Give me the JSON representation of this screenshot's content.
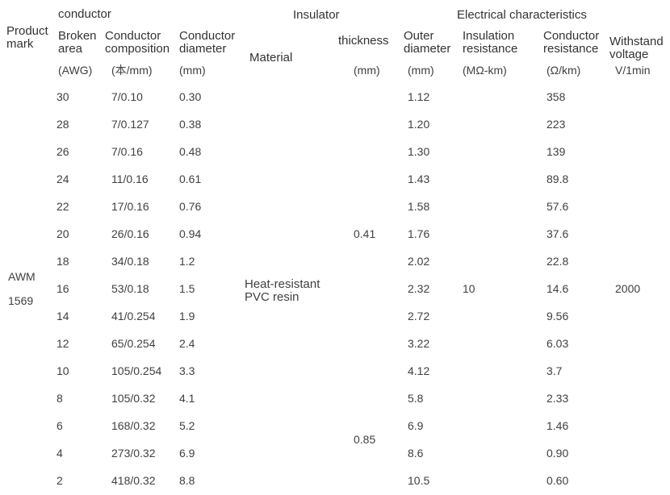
{
  "header": {
    "product_mark": "Product mark",
    "conductor": "conductor",
    "insulator": "Insulator",
    "electrical": "Electrical characteristics",
    "broken_area": "Broken area",
    "conductor_composition": "Conductor composition",
    "conductor_diameter": "Conductor diameter",
    "material": "Material",
    "thickness": "thickness",
    "outer_diameter": "Outer diameter",
    "insulation_resistance": "Insulation resistance",
    "conductor_resistance": "Conductor resistance",
    "withstand_voltage": "Withstand voltage"
  },
  "units": {
    "awg": "(AWG)",
    "composition": "(本/mm)",
    "diameter": "(mm)",
    "thickness": "(mm)",
    "outer": "(mm)",
    "insulation": "(MΩ-km)",
    "resistance": "(Ω/km)",
    "voltage": "V/1min"
  },
  "product": {
    "mark_line1": "AWM",
    "mark_line2": "1569"
  },
  "material": "Heat-resistant PVC resin",
  "thickness_values": [
    "0.41",
    "0.85"
  ],
  "insulation_resistance_value": "10",
  "withstand_voltage_value": "2000",
  "rows": [
    {
      "awg": "30",
      "composition": "7/0.10",
      "diameter": "0.30",
      "outer": "1.12",
      "resistance": "358"
    },
    {
      "awg": "28",
      "composition": "7/0.127",
      "diameter": "0.38",
      "outer": "1.20",
      "resistance": "223"
    },
    {
      "awg": "26",
      "composition": "7/0.16",
      "diameter": "0.48",
      "outer": "1.30",
      "resistance": "139"
    },
    {
      "awg": "24",
      "composition": "11/0.16",
      "diameter": "0.61",
      "outer": "1.43",
      "resistance": "89.8"
    },
    {
      "awg": "22",
      "composition": "17/0.16",
      "diameter": "0.76",
      "outer": "1.58",
      "resistance": "57.6"
    },
    {
      "awg": "20",
      "composition": "26/0.16",
      "diameter": "0.94",
      "outer": "1.76",
      "resistance": "37.6"
    },
    {
      "awg": "18",
      "composition": "34/0.18",
      "diameter": "1.2",
      "outer": "2.02",
      "resistance": "22.8"
    },
    {
      "awg": "16",
      "composition": "53/0.18",
      "diameter": "1.5",
      "outer": "2.32",
      "resistance": "14.6"
    },
    {
      "awg": "14",
      "composition": "41/0.254",
      "diameter": "1.9",
      "outer": "2.72",
      "resistance": "9.56"
    },
    {
      "awg": "12",
      "composition": "65/0.254",
      "diameter": "2.4",
      "outer": "3.22",
      "resistance": "6.03"
    },
    {
      "awg": "10",
      "composition": "105/0.254",
      "diameter": "3.3",
      "outer": "4.12",
      "resistance": "3.7"
    },
    {
      "awg": "8",
      "composition": "105/0.32",
      "diameter": "4.1",
      "outer": "5.8",
      "resistance": "2.33"
    },
    {
      "awg": "6",
      "composition": "168/0.32",
      "diameter": "5.2",
      "outer": "6.9",
      "resistance": "1.46"
    },
    {
      "awg": "4",
      "composition": "273/0.32",
      "diameter": "6.9",
      "outer": "8.6",
      "resistance": "0.90"
    },
    {
      "awg": "2",
      "composition": "418/0.32",
      "diameter": "8.8",
      "outer": "10.5",
      "resistance": "0.60"
    }
  ]
}
